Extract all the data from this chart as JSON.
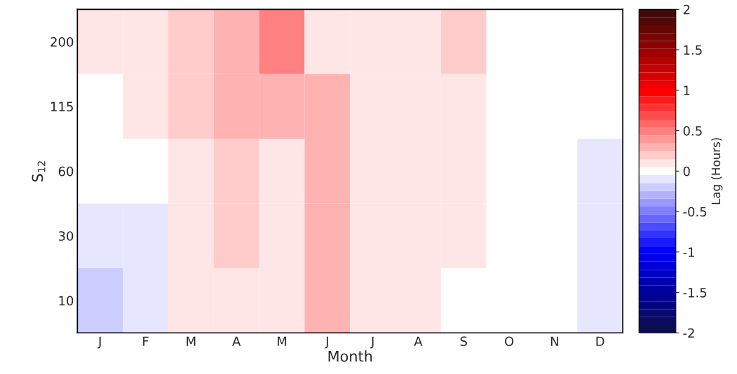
{
  "chart_data": {
    "type": "heatmap",
    "xlabel": "Month",
    "ylabel": "S$_{12}$",
    "clabel": "Lag (Hours)",
    "categories": [
      "J",
      "F",
      "M",
      "A",
      "M",
      "J",
      "J",
      "A",
      "S",
      "O",
      "N",
      "D"
    ],
    "y_categories": [
      "200",
      "115",
      "60",
      "30",
      "10"
    ],
    "cells": [
      [
        0.12,
        0.12,
        0.19,
        0.25,
        0.47,
        0.12,
        0.06,
        0.12,
        0.19,
        0,
        0,
        0
      ],
      [
        0,
        0.06,
        0.19,
        0.25,
        0.3,
        0.25,
        0.06,
        0.12,
        0.12,
        0,
        0,
        0
      ],
      [
        0,
        0,
        0.12,
        0.22,
        0.12,
        0.25,
        0.06,
        0.12,
        0.06,
        0,
        0,
        -0.06
      ],
      [
        -0.12,
        -0.06,
        0.12,
        0.22,
        0.06,
        0.25,
        0.06,
        0.12,
        0.06,
        0,
        0,
        -0.06
      ],
      [
        -0.18,
        -0.06,
        0.12,
        0.12,
        0.06,
        0.3,
        0.06,
        0.12,
        0,
        0,
        0,
        -0.06
      ]
    ],
    "clim": [
      -2,
      2
    ],
    "cticks": [
      -2,
      -1.5,
      -1,
      -0.5,
      0,
      0.5,
      1,
      1.5,
      2
    ]
  }
}
